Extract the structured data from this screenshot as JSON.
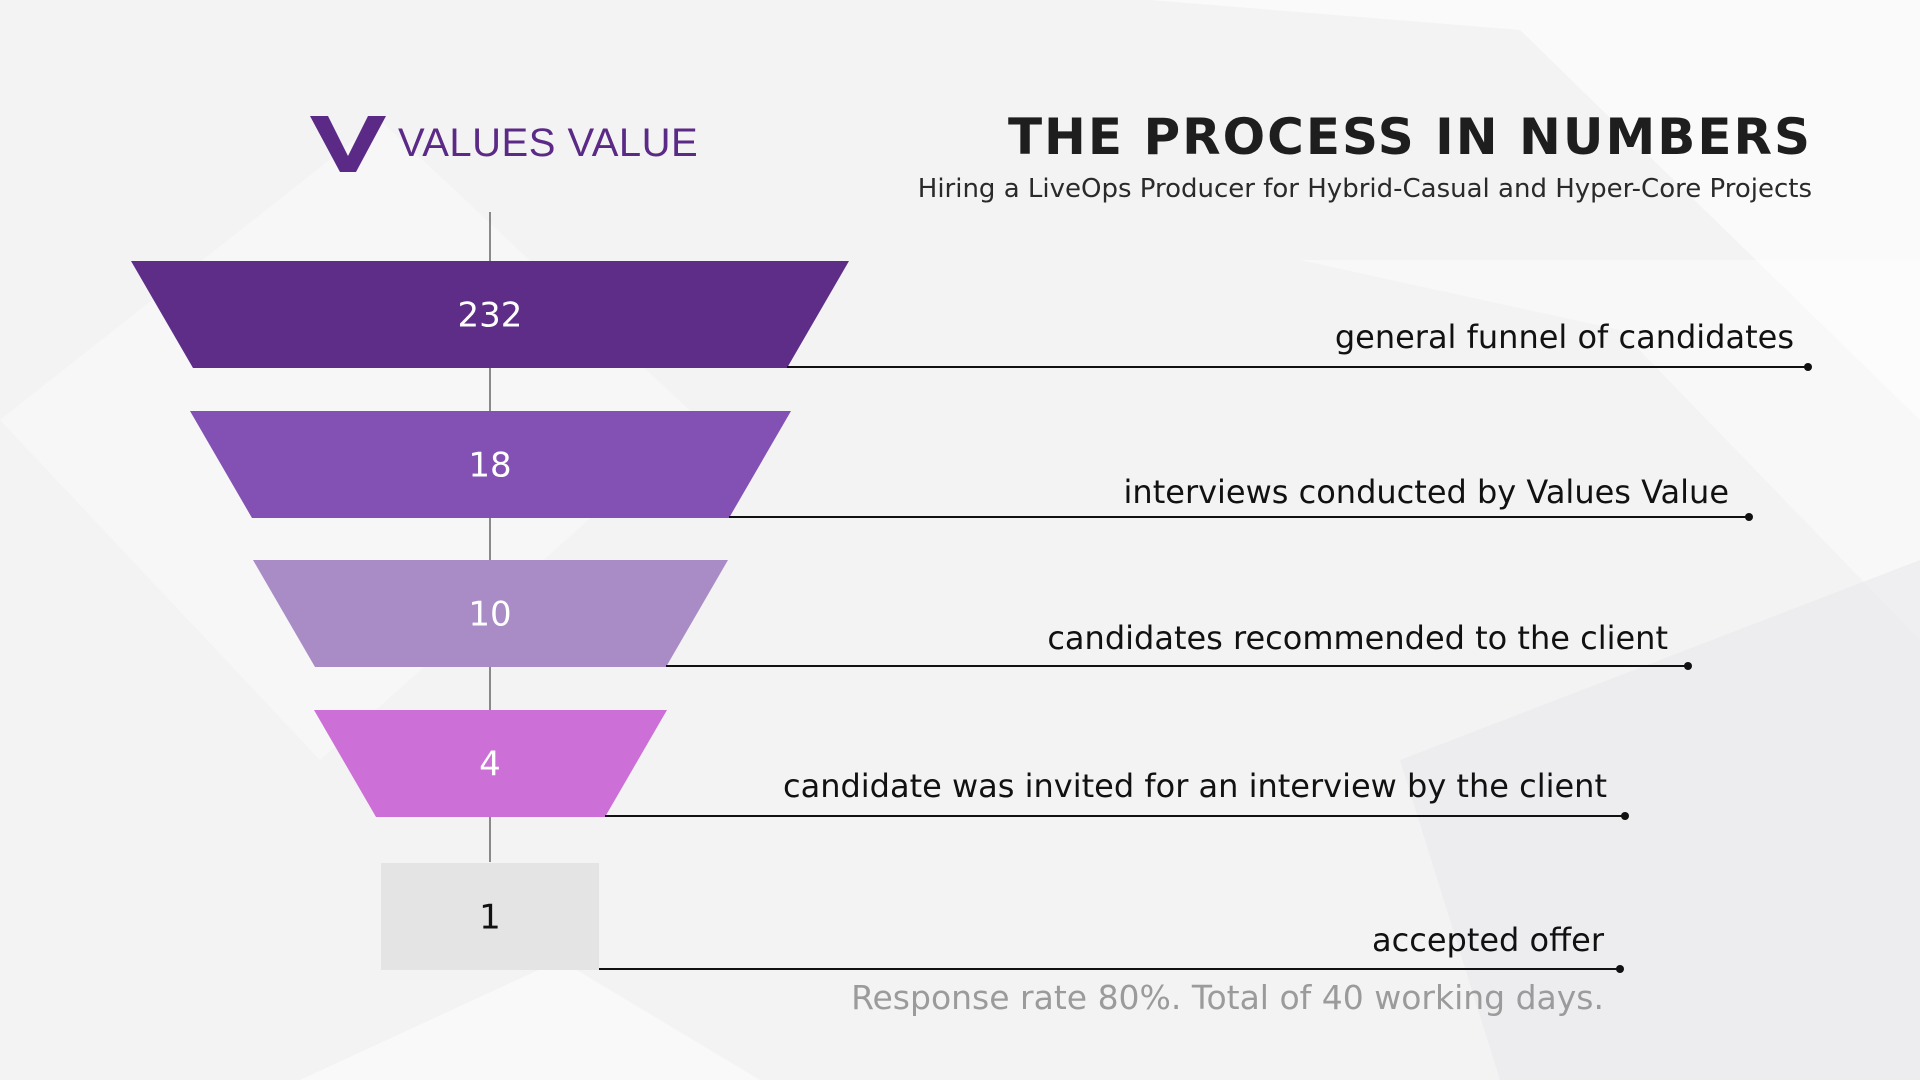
{
  "brand": {
    "name": "VALUES VALUE",
    "color": "#5b2a86"
  },
  "title": "THE PROCESS IN NUMBERS",
  "subtitle": "Hiring a LiveOps Producer for Hybrid-Casual and Hyper-Core Projects",
  "stages": [
    {
      "value": "232",
      "label": "general funnel of candidates",
      "color": "#5e2d88",
      "text_color": "#ffffff"
    },
    {
      "value": "18",
      "label": "interviews conducted by Values Value",
      "color": "#8350b3",
      "text_color": "#ffffff"
    },
    {
      "value": "10",
      "label": "candidates recommended to the client",
      "color": "#a98cc6",
      "text_color": "#ffffff"
    },
    {
      "value": "4",
      "label": "candidate was invited for an interview by the client",
      "color": "#cc6fd6",
      "text_color": "#ffffff"
    },
    {
      "value": "1",
      "label": "accepted offer",
      "color": "#e4e4e4",
      "text_color": "#111111"
    }
  ],
  "footnote": "Response rate 80%. Total of 40 working days."
}
